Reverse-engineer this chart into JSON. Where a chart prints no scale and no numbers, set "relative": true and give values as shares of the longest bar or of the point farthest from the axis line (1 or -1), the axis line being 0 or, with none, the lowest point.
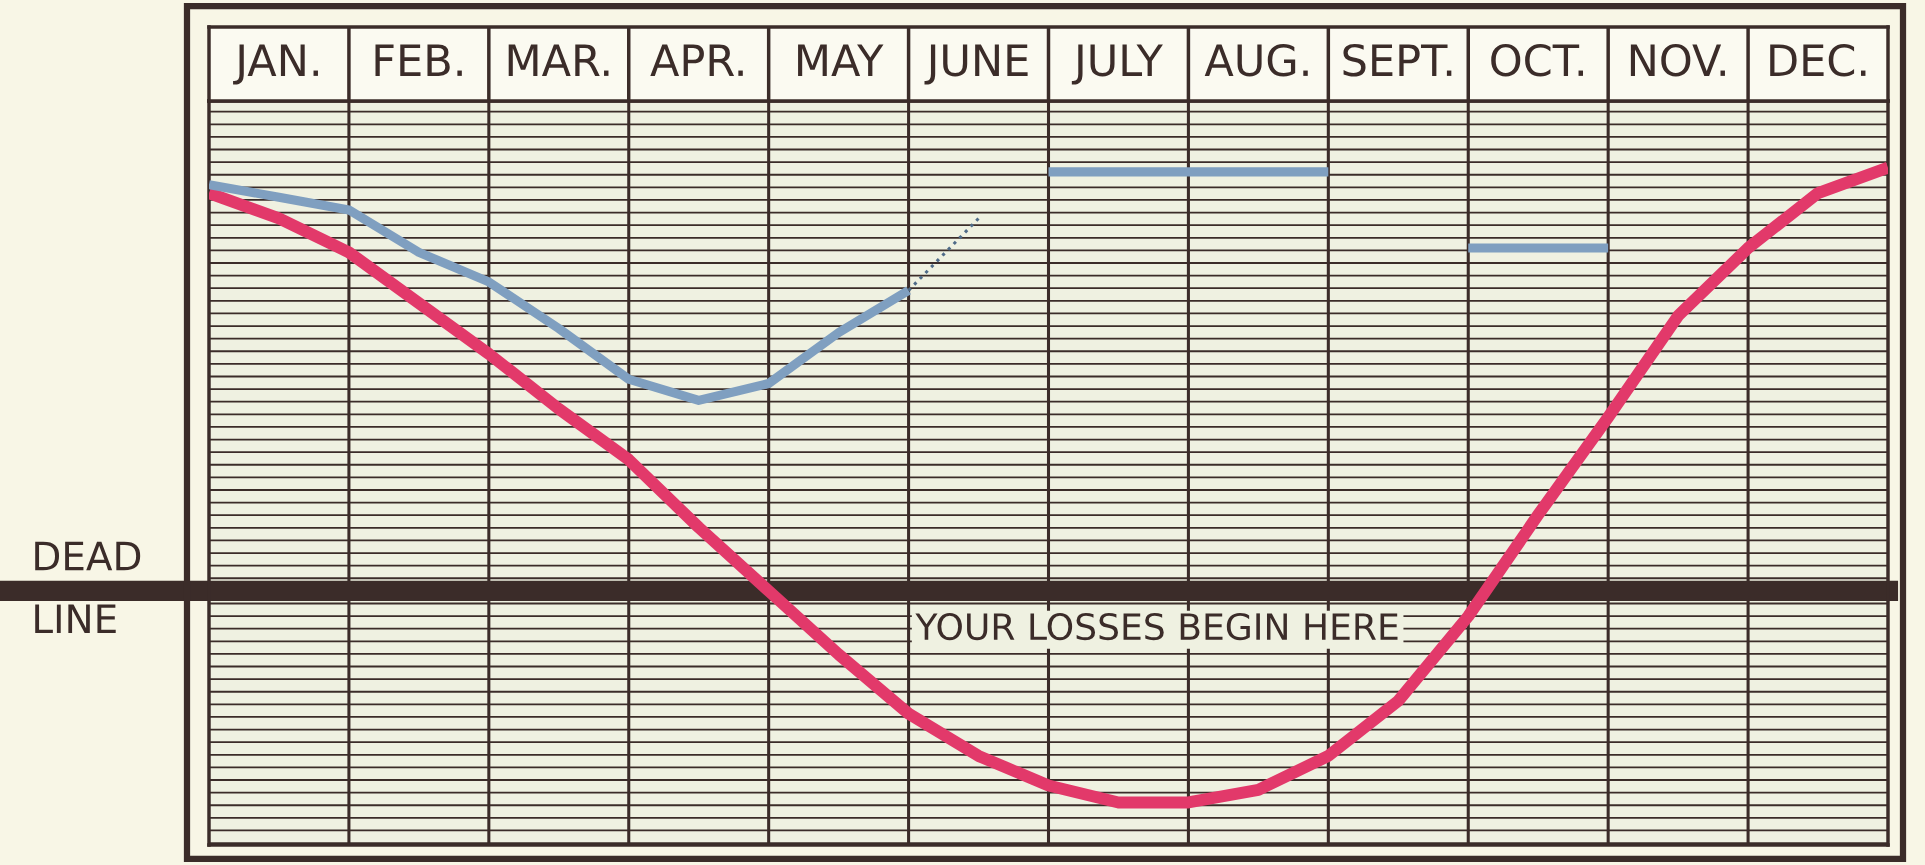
{
  "chart_data": {
    "type": "line",
    "relative": true,
    "categories": [
      null,
      "JAN.",
      null,
      "FEB.",
      null,
      "MAR.",
      null,
      "APR.",
      null,
      "MAY",
      null,
      "JUNE",
      null,
      "JULY",
      null,
      "AUG.",
      null,
      "SEPT.",
      null,
      "OCT.",
      null,
      "NOV.",
      null,
      "DEC.",
      null
    ],
    "series": [
      {
        "color": "#e2396a",
        "values": [
          0.94,
          0.88,
          0.8,
          0.68,
          0.56,
          0.43,
          0.31,
          0.15,
          0.0,
          -0.15,
          -0.29,
          -0.39,
          -0.46,
          -0.5,
          -0.5,
          -0.47,
          -0.39,
          -0.26,
          -0.06,
          0.18,
          0.41,
          0.65,
          0.81,
          0.94,
          1.0
        ]
      },
      {
        "color": "#7f9fc0",
        "values": [
          0.96,
          0.93,
          0.9,
          0.8,
          0.73,
          0.62,
          0.5,
          0.45,
          0.49,
          0.61,
          0.71,
          null,
          0.99,
          0.99,
          0.99,
          0.99,
          0.99,
          null,
          0.81,
          0.81,
          0.81,
          null,
          null,
          null,
          null
        ]
      },
      {
        "color": "#4f6b88",
        "line_style": "dotted",
        "values": [
          null,
          null,
          null,
          null,
          null,
          null,
          null,
          null,
          null,
          null,
          0.71,
          0.88,
          null,
          null,
          null,
          null,
          null,
          null,
          null,
          null,
          null,
          null,
          null,
          null,
          null
        ]
      }
    ],
    "ref_lines": [
      {
        "axis": "y",
        "value": 0,
        "label": "DEAD\nLINE",
        "color": "#3b2c29"
      }
    ],
    "annotations": [
      "YOUR LOSSES BEGIN HERE"
    ],
    "grid": true,
    "line_style": "solid",
    "tick_labels": "x"
  }
}
